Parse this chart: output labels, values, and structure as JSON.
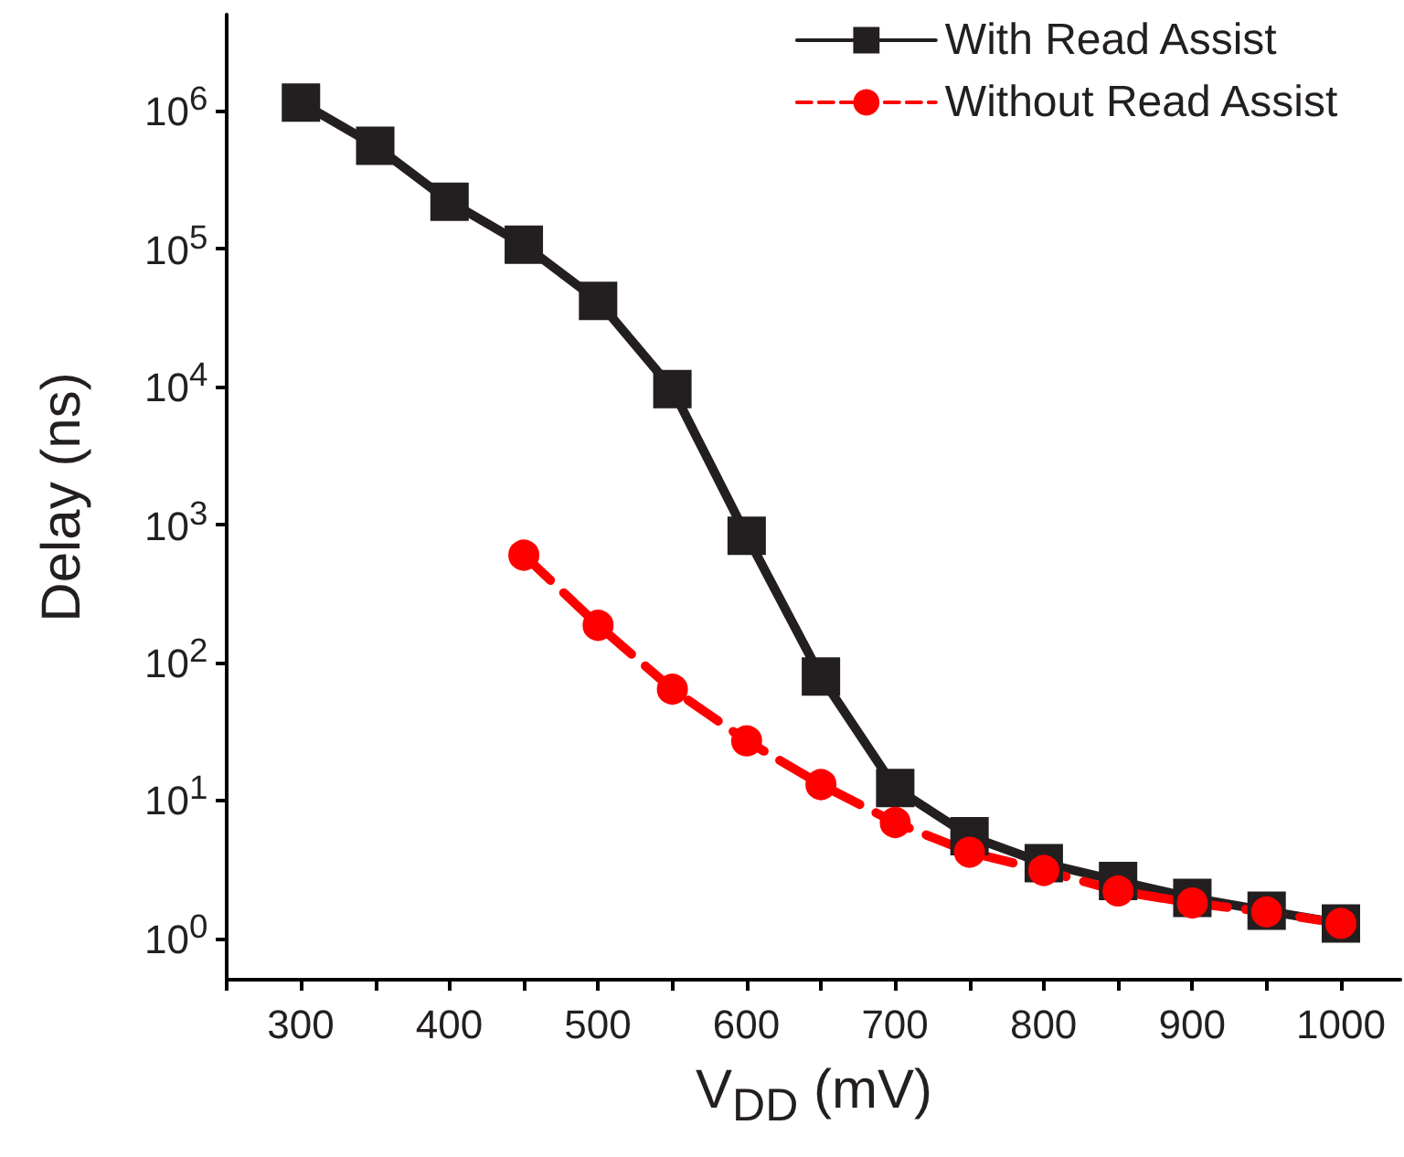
{
  "chart_data": {
    "type": "line",
    "xlabel": "V$_{DD}$ (mV)",
    "ylabel": "Delay (ns)",
    "x": [
      300,
      350,
      400,
      450,
      500,
      550,
      600,
      650,
      700,
      750,
      800,
      850,
      900,
      950,
      1000
    ],
    "series": [
      {
        "name": "With Read Assist",
        "color": "#231f20",
        "marker": "square",
        "line_style": "solid",
        "values": [
          1150000,
          560000,
          220000,
          107000,
          42000,
          9600,
          830,
          79,
          12.3,
          5.5,
          3.5,
          2.6,
          1.96,
          1.58,
          1.28
        ]
      },
      {
        "name": "Without Read Assist",
        "color": "#ff0000",
        "marker": "circle",
        "line_style": "dashed",
        "x": [
          450,
          500,
          550,
          600,
          650,
          700,
          750,
          800,
          850,
          900,
          950,
          1000
        ],
        "values": [
          600,
          186,
          64,
          27,
          13,
          6.9,
          4.2,
          3.1,
          2.2,
          1.8,
          1.55,
          1.28
        ]
      }
    ],
    "log": "y",
    "xlim": [
      250,
      1040
    ],
    "xticks": [
      {
        "value": 250,
        "label": null
      },
      300,
      {
        "value": 350,
        "label": null
      },
      400,
      {
        "value": 450,
        "label": null
      },
      500,
      {
        "value": 550,
        "label": null
      },
      600,
      {
        "value": 650,
        "label": null
      },
      700,
      {
        "value": 750,
        "label": null
      },
      800,
      {
        "value": 850,
        "label": null
      },
      900,
      {
        "value": 950,
        "label": null
      },
      1000
    ],
    "ylim": [
      0.5,
      5000000
    ],
    "yticks": [
      {
        "value": 1,
        "label": "10$^{0}$"
      },
      {
        "value": 10,
        "label": "10$^{1}$"
      },
      {
        "value": 100,
        "label": "10$^{2}$"
      },
      {
        "value": 1000,
        "label": "10$^{3}$"
      },
      {
        "value": 10000,
        "label": "10$^{4}$"
      },
      {
        "value": 100000,
        "label": "10$^{5}$"
      },
      {
        "value": 1000000,
        "label": "10$^{6}$"
      }
    ],
    "grid": false,
    "legend": "top right"
  }
}
